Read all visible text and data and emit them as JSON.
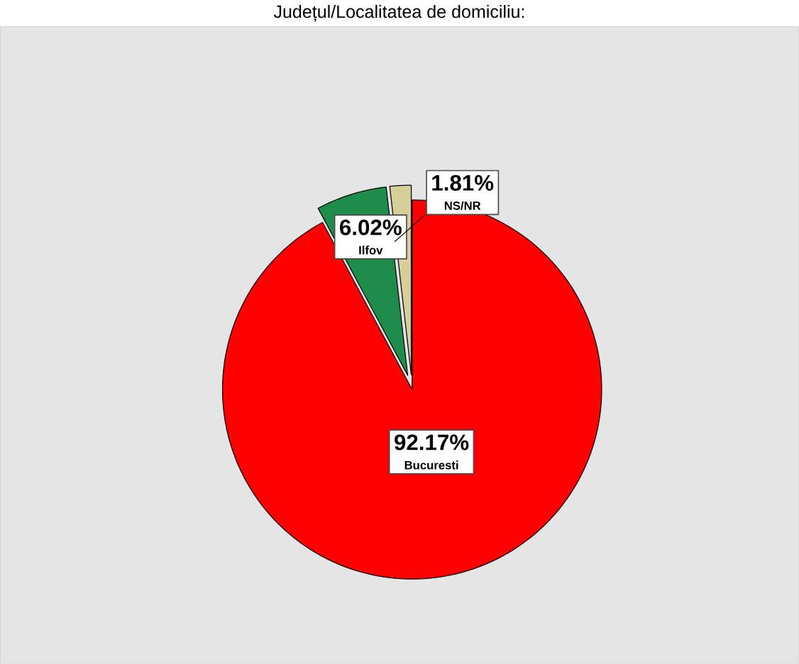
{
  "chart_data": {
    "type": "pie",
    "title": "Județul/Localitatea de domiciliu:",
    "categories": [
      "Bucuresti",
      "Ilfov",
      "NS/NR"
    ],
    "values": [
      92.17,
      6.02,
      1.81
    ],
    "colors": [
      "#ff0000",
      "#1e8c4a",
      "#d6cf98"
    ],
    "value_labels": [
      "92.17%",
      "6.02%",
      "1.81%"
    ],
    "legend": false
  }
}
